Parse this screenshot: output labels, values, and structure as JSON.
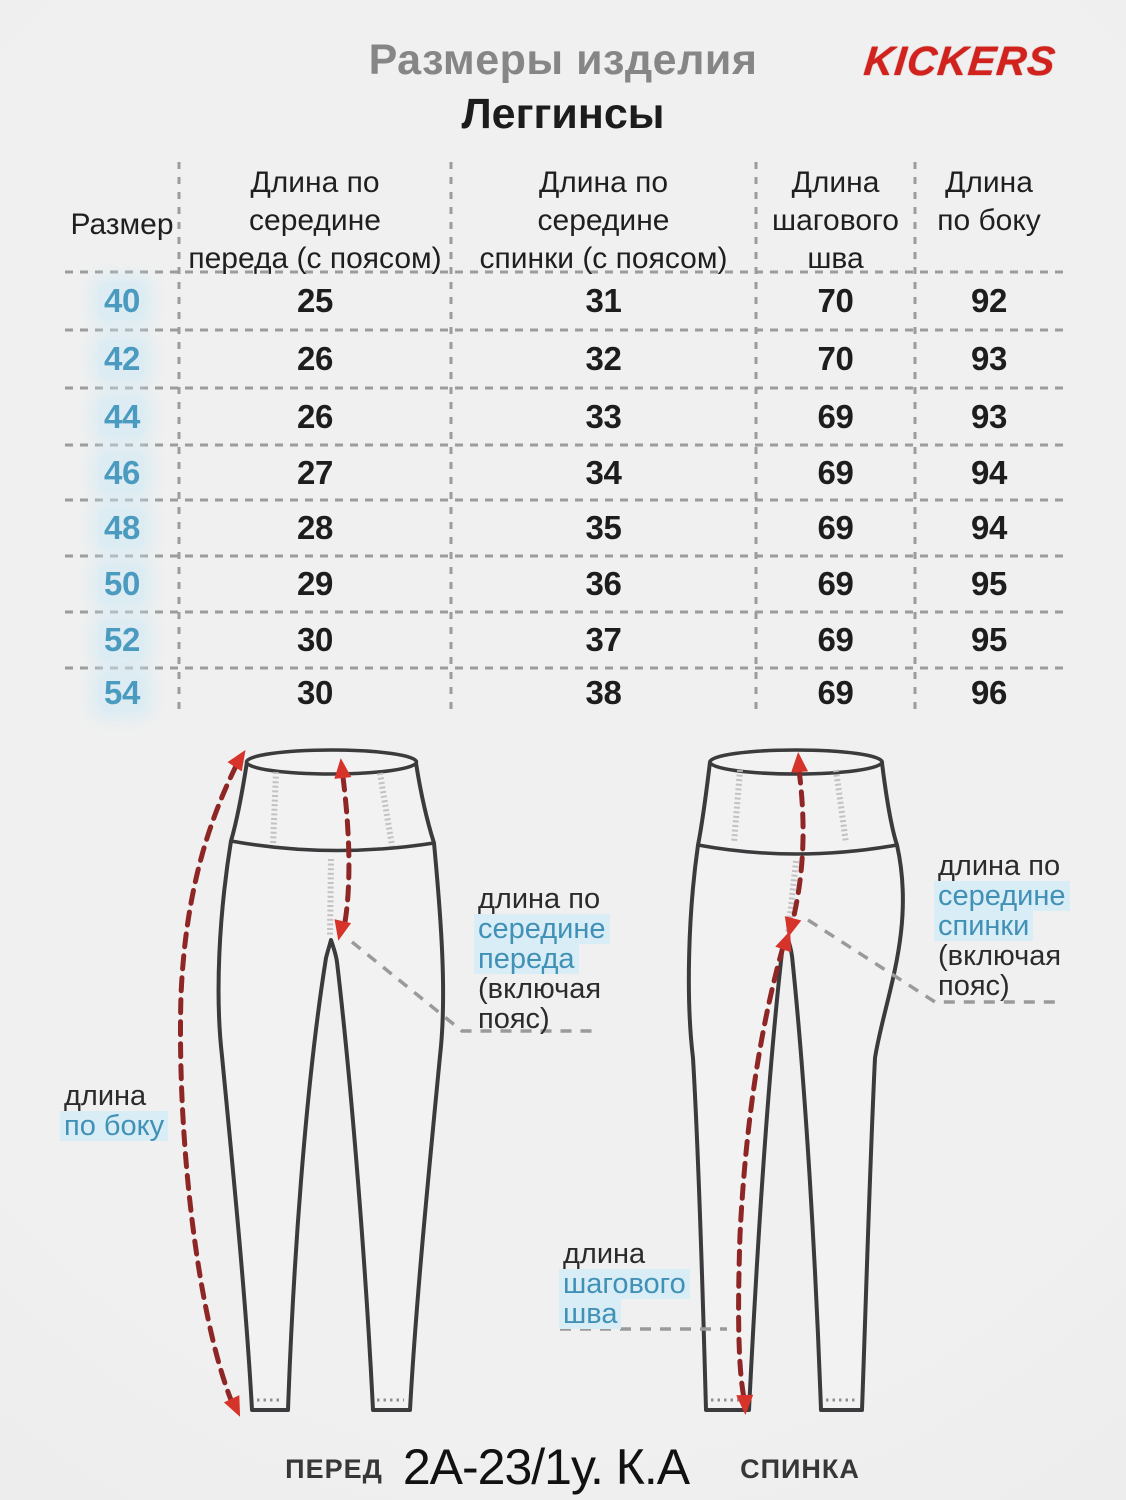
{
  "header": {
    "title": "Размеры изделия",
    "subtitle": "Леггинсы",
    "brand": "KICKERS"
  },
  "table": {
    "header_lines": [
      [
        "Размер"
      ],
      [
        "Длина по",
        "середине",
        "переда (с поясом)"
      ],
      [
        "Длина по",
        "середине",
        "спинки (с поясом)"
      ],
      [
        "Длина",
        "шагового",
        "шва"
      ],
      [
        "Длина",
        "по боку"
      ]
    ],
    "rows": [
      {
        "size": "40",
        "values": [
          "25",
          "31",
          "70",
          "92"
        ]
      },
      {
        "size": "42",
        "values": [
          "26",
          "32",
          "70",
          "93"
        ]
      },
      {
        "size": "44",
        "values": [
          "26",
          "33",
          "69",
          "93"
        ]
      },
      {
        "size": "46",
        "values": [
          "27",
          "34",
          "69",
          "94"
        ]
      },
      {
        "size": "48",
        "values": [
          "28",
          "35",
          "69",
          "94"
        ]
      },
      {
        "size": "50",
        "values": [
          "29",
          "36",
          "69",
          "95"
        ]
      },
      {
        "size": "52",
        "values": [
          "30",
          "37",
          "69",
          "95"
        ]
      },
      {
        "size": "54",
        "values": [
          "30",
          "38",
          "69",
          "96"
        ]
      }
    ]
  },
  "diagram": {
    "front_caption": "ПЕРЕД",
    "back_caption": "СПИНКА",
    "article_code": "2А-23/1у. К.А",
    "labels": {
      "front_center": [
        {
          "text": "длина по",
          "blue": false
        },
        {
          "text": "середине",
          "blue": true
        },
        {
          "text": "переда",
          "blue": true
        },
        {
          "text": "(включая",
          "blue": false
        },
        {
          "text": "пояс)",
          "blue": false
        }
      ],
      "back_center": [
        {
          "text": "длина по",
          "blue": false
        },
        {
          "text": "середине",
          "blue": true
        },
        {
          "text": "спинки",
          "blue": true
        },
        {
          "text": "(включая",
          "blue": false
        },
        {
          "text": "пояс)",
          "blue": false
        }
      ],
      "side": [
        {
          "text": "длина",
          "blue": false
        },
        {
          "text": "по боку",
          "blue": true
        }
      ],
      "inseam": [
        {
          "text": "длина",
          "blue": false
        },
        {
          "text": "шагового",
          "blue": true
        },
        {
          "text": "шва",
          "blue": true
        }
      ]
    }
  },
  "colors": {
    "background": "#ececec",
    "title_gray": "#868686",
    "text_black": "#1d1d1d",
    "size_blue": "#4b9bc1",
    "label_blue": "#4191b6",
    "blue_highlight": "#d9edf6",
    "brand_red": "#d2221e",
    "arrow_dash_red": "#8f2626",
    "arrow_head_red": "#d6332a",
    "outline_dark": "#3b3b3d",
    "grid_gray": "#9c9c9c"
  }
}
